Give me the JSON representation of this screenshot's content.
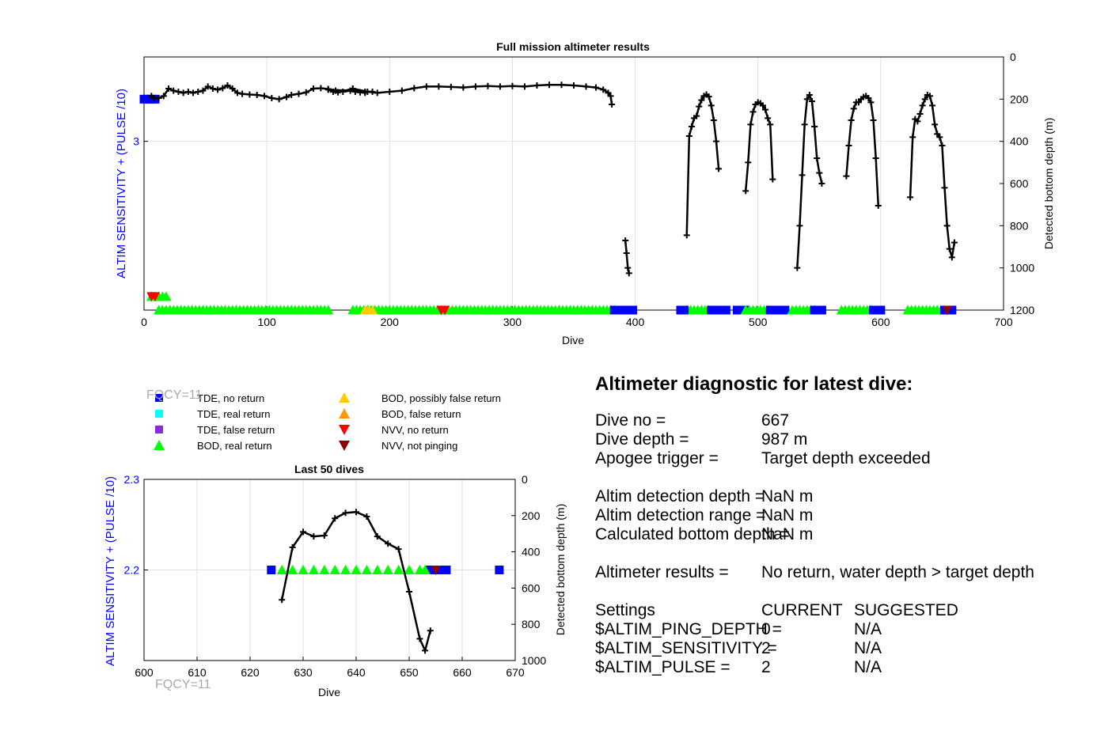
{
  "colors": {
    "tde_no_return": "#0000ff",
    "tde_real_return": "#00ffff",
    "tde_false_return": "#8a2be2",
    "bod_real_return": "#00ff00",
    "bod_possibly_false_return": "#ffcc00",
    "bod_false_return": "#ff9900",
    "nvv_no_return": "#ff0000",
    "nvv_not_pinging": "#8b0000",
    "left_axis": "#0000ff",
    "depth_line": "#000000",
    "watermark": "#aaaaaa"
  },
  "watermark": "FQCY=11",
  "legend": {
    "items": [
      {
        "label": "TDE, no return",
        "marker": "square",
        "color": "#0000ff"
      },
      {
        "label": "TDE, real return",
        "marker": "square",
        "color": "#00ffff"
      },
      {
        "label": "TDE, false return",
        "marker": "square",
        "color": "#8a2be2"
      },
      {
        "label": "BOD, real return",
        "marker": "triangle-up",
        "color": "#00ff00"
      },
      {
        "label": "BOD, possibly false return",
        "marker": "triangle-up",
        "color": "#ffcc00"
      },
      {
        "label": "BOD, false return",
        "marker": "triangle-up",
        "color": "#ff9900"
      },
      {
        "label": "NVV, no return",
        "marker": "triangle-down",
        "color": "#ff0000"
      },
      {
        "label": "NVV, not pinging",
        "marker": "triangle-down",
        "color": "#8b0000"
      }
    ]
  },
  "diagnostic": {
    "title": "Altimeter diagnostic for latest dive:",
    "dive_no_label": "Dive no =",
    "dive_no_value": "667",
    "dive_depth_label": "Dive depth =",
    "dive_depth_value": "987 m",
    "apogee_label": "Apogee trigger =",
    "apogee_value": "Target depth exceeded",
    "det_depth_label": "Altim detection depth =",
    "det_depth_value": "NaN m",
    "det_range_label": "Altim detection range =",
    "det_range_value": "NaN m",
    "calc_bottom_label": "Calculated bottom depth =",
    "calc_bottom_value": "NaN m",
    "results_label": "Altimeter results =",
    "results_value": "No return, water depth > target depth",
    "settings_label": "Settings",
    "current_header": "CURRENT",
    "suggested_header": "SUGGESTED",
    "ping_depth_label": "$ALTIM_PING_DEPTH =",
    "ping_depth_current": "0",
    "ping_depth_suggested": "N/A",
    "sensitivity_label": "$ALTIM_SENSITIVITY =",
    "sensitivity_current": "2",
    "sensitivity_suggested": "N/A",
    "pulse_label": "$ALTIM_PULSE =",
    "pulse_current": "2",
    "pulse_suggested": "N/A"
  },
  "chart_data": [
    {
      "type": "line",
      "title": "Full mission altimeter results",
      "xlabel": "Dive",
      "ylabel": "ALTIM SENSITIVITY + (PULSE /10)",
      "ylabel_right": "Detected bottom depth (m)",
      "xlim": [
        0,
        700
      ],
      "xticks": [
        0,
        100,
        200,
        300,
        400,
        500,
        600,
        700
      ],
      "ylim_left": [
        2,
        3.5
      ],
      "yticks_left": [
        3
      ],
      "ylim_right": [
        0,
        1200
      ],
      "right_reversed": true,
      "yticks_right": [
        0,
        200,
        400,
        600,
        800,
        1000,
        1200
      ],
      "grid": true,
      "depth_series": [
        [
          [
            6,
            185
          ],
          [
            8,
            195
          ],
          [
            12,
            195
          ],
          [
            16,
            185
          ],
          [
            20,
            150
          ],
          [
            24,
            160
          ],
          [
            28,
            165
          ],
          [
            32,
            170
          ],
          [
            36,
            165
          ],
          [
            40,
            170
          ],
          [
            44,
            165
          ],
          [
            48,
            160
          ],
          [
            52,
            140
          ],
          [
            56,
            150
          ],
          [
            60,
            155
          ],
          [
            64,
            148
          ],
          [
            68,
            135
          ],
          [
            72,
            150
          ],
          [
            76,
            170
          ],
          [
            80,
            175
          ],
          [
            86,
            178
          ],
          [
            92,
            180
          ],
          [
            98,
            185
          ],
          [
            104,
            195
          ],
          [
            110,
            200
          ],
          [
            116,
            190
          ],
          [
            120,
            180
          ],
          [
            126,
            175
          ],
          [
            132,
            168
          ],
          [
            138,
            150
          ],
          [
            144,
            148
          ],
          [
            150,
            152
          ],
          [
            156,
            160
          ],
          [
            162,
            165
          ],
          [
            168,
            160
          ],
          [
            172,
            165
          ],
          [
            176,
            168
          ],
          [
            180,
            165
          ],
          [
            186,
            165
          ],
          [
            150,
            155
          ],
          [
            154,
            165
          ],
          [
            158,
            168
          ],
          [
            170,
            150
          ],
          [
            180,
            170
          ]
        ],
        [
          [
            170,
            150
          ],
          [
            182,
            165
          ],
          [
            190,
            170
          ],
          [
            200,
            165
          ],
          [
            210,
            160
          ],
          [
            220,
            148
          ],
          [
            230,
            140
          ],
          [
            240,
            140
          ],
          [
            250,
            142
          ],
          [
            260,
            145
          ],
          [
            270,
            140
          ],
          [
            280,
            138
          ],
          [
            290,
            140
          ],
          [
            300,
            138
          ],
          [
            310,
            140
          ],
          [
            320,
            135
          ],
          [
            330,
            132
          ],
          [
            340,
            132
          ],
          [
            350,
            135
          ],
          [
            360,
            140
          ],
          [
            368,
            145
          ],
          [
            374,
            155
          ],
          [
            378,
            170
          ],
          [
            380,
            185
          ],
          [
            381,
            225
          ]
        ],
        [
          [
            392,
            870
          ],
          [
            393,
            930
          ],
          [
            394,
            1000
          ],
          [
            395,
            1025
          ]
        ],
        [
          [
            442,
            845
          ],
          [
            444,
            375
          ],
          [
            446,
            330
          ],
          [
            448,
            290
          ],
          [
            450,
            280
          ],
          [
            452,
            235
          ],
          [
            454,
            205
          ],
          [
            456,
            185
          ],
          [
            458,
            178
          ],
          [
            460,
            188
          ],
          [
            462,
            230
          ],
          [
            464,
            300
          ],
          [
            466,
            400
          ],
          [
            468,
            530
          ]
        ],
        [
          [
            490,
            635
          ],
          [
            492,
            500
          ],
          [
            494,
            320
          ],
          [
            496,
            260
          ],
          [
            498,
            225
          ],
          [
            500,
            215
          ],
          [
            502,
            220
          ],
          [
            504,
            230
          ],
          [
            506,
            250
          ],
          [
            508,
            290
          ],
          [
            510,
            320
          ],
          [
            512,
            580
          ]
        ],
        [
          [
            532,
            1000
          ],
          [
            534,
            800
          ],
          [
            536,
            560
          ],
          [
            538,
            320
          ],
          [
            540,
            200
          ],
          [
            542,
            180
          ],
          [
            544,
            210
          ],
          [
            546,
            330
          ],
          [
            548,
            480
          ],
          [
            550,
            550
          ],
          [
            552,
            600
          ]
        ],
        [
          [
            572,
            565
          ],
          [
            574,
            420
          ],
          [
            576,
            300
          ],
          [
            578,
            245
          ],
          [
            580,
            215
          ],
          [
            582,
            215
          ],
          [
            584,
            200
          ],
          [
            586,
            190
          ],
          [
            588,
            185
          ],
          [
            590,
            195
          ],
          [
            592,
            215
          ],
          [
            594,
            300
          ],
          [
            596,
            480
          ],
          [
            598,
            705
          ]
        ],
        [
          [
            624,
            665
          ],
          [
            626,
            380
          ],
          [
            628,
            295
          ],
          [
            630,
            305
          ],
          [
            632,
            270
          ],
          [
            634,
            230
          ],
          [
            636,
            200
          ],
          [
            638,
            180
          ],
          [
            640,
            185
          ],
          [
            642,
            230
          ],
          [
            644,
            320
          ],
          [
            646,
            365
          ],
          [
            648,
            380
          ],
          [
            650,
            420
          ],
          [
            652,
            620
          ],
          [
            654,
            800
          ],
          [
            656,
            910
          ],
          [
            658,
            950
          ],
          [
            660,
            880
          ]
        ]
      ],
      "markers": [
        {
          "kind": "tde_no_return",
          "x_range": [
            0,
            10
          ],
          "y": 3.25
        },
        {
          "kind": "bod_real_return",
          "x_range": [
            6,
            20
          ],
          "y": 2.08
        },
        {
          "kind": "nvv_no_return",
          "x_range": [
            6,
            9
          ],
          "y": 2.08
        },
        {
          "kind": "bod_real_return",
          "x_range": [
            12,
            152
          ],
          "y": 2.0
        },
        {
          "kind": "bod_real_return",
          "x_range": [
            170,
            385
          ],
          "y": 2.0
        },
        {
          "kind": "bod_possibly_false_return",
          "x_range": [
            180,
            186
          ],
          "y": 2.0
        },
        {
          "kind": "nvv_no_return",
          "x_range": [
            242,
            245
          ],
          "y": 2.0
        },
        {
          "kind": "tde_no_return",
          "x_range": [
            383,
            398
          ],
          "y": 2.0
        },
        {
          "kind": "bod_real_return",
          "x_range": [
            442,
            462
          ],
          "y": 2.0
        },
        {
          "kind": "tde_no_return",
          "x_range": [
            437,
            442
          ],
          "y": 2.0
        },
        {
          "kind": "tde_no_return",
          "x_range": [
            462,
            474
          ],
          "y": 2.0
        },
        {
          "kind": "tde_no_return",
          "x_range": [
            483,
            490
          ],
          "y": 2.0
        },
        {
          "kind": "bod_real_return",
          "x_range": [
            490,
            510
          ],
          "y": 2.0
        },
        {
          "kind": "tde_no_return",
          "x_range": [
            510,
            522
          ],
          "y": 2.0
        },
        {
          "kind": "bod_real_return",
          "x_range": [
            528,
            546
          ],
          "y": 2.0
        },
        {
          "kind": "tde_no_return",
          "x_range": [
            546,
            554
          ],
          "y": 2.0
        },
        {
          "kind": "bod_real_return",
          "x_range": [
            568,
            594
          ],
          "y": 2.0
        },
        {
          "kind": "tde_no_return",
          "x_range": [
            594,
            600
          ],
          "y": 2.0
        },
        {
          "kind": "bod_real_return",
          "x_range": [
            622,
            652
          ],
          "y": 2.0
        },
        {
          "kind": "tde_no_return",
          "x_range": [
            652,
            660
          ],
          "y": 2.0
        },
        {
          "kind": "nvv_not_pinging",
          "x_range": [
            654,
            656
          ],
          "y": 2.0
        }
      ]
    },
    {
      "type": "line",
      "title": "Last 50 dives",
      "xlabel": "Dive",
      "ylabel": "ALTIM SENSITIVITY + (PULSE /10)",
      "ylabel_right": "Detected bottom depth (m)",
      "xlim": [
        600,
        670
      ],
      "xticks": [
        600,
        610,
        620,
        630,
        640,
        650,
        660,
        670
      ],
      "ylim_left": [
        2.1,
        2.3
      ],
      "yticks_left": [
        2.2,
        2.3
      ],
      "ylim_right": [
        0,
        1000
      ],
      "right_reversed": true,
      "yticks_right": [
        0,
        200,
        400,
        600,
        800,
        1000
      ],
      "grid": true,
      "depth_series": [
        [
          [
            626,
            665
          ],
          [
            628,
            375
          ],
          [
            630,
            290
          ],
          [
            632,
            315
          ],
          [
            634,
            310
          ],
          [
            636,
            215
          ],
          [
            638,
            185
          ],
          [
            640,
            180
          ],
          [
            642,
            205
          ],
          [
            644,
            315
          ],
          [
            646,
            355
          ],
          [
            648,
            385
          ],
          [
            650,
            620
          ],
          [
            652,
            880
          ],
          [
            653,
            945
          ],
          [
            654,
            835
          ]
        ]
      ],
      "markers": [
        {
          "kind": "tde_no_return",
          "points": [
            624,
            654,
            655,
            656,
            657,
            667
          ],
          "y": 2.2
        },
        {
          "kind": "bod_real_return",
          "points": [
            626,
            628,
            630,
            632,
            634,
            636,
            638,
            640,
            642,
            644,
            646,
            648,
            650,
            652,
            653
          ],
          "y": 2.2
        },
        {
          "kind": "nvv_not_pinging",
          "points": [
            655
          ],
          "y": 2.2
        }
      ]
    }
  ]
}
